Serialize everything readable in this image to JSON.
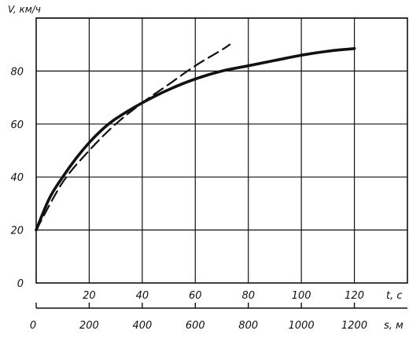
{
  "chart_data": {
    "type": "line",
    "ylabel": "V, км/ч",
    "xlabel_time": "t, c",
    "xlabel_distance": "s, м",
    "yticks": [
      0,
      20,
      40,
      60,
      80
    ],
    "ylim": [
      0,
      100
    ],
    "xticks_time": [
      20,
      40,
      60,
      80,
      100,
      120
    ],
    "xlim_time": [
      0,
      140
    ],
    "xticks_distance": [
      0,
      200,
      400,
      600,
      800,
      1000,
      1200
    ],
    "xlim_distance": [
      0,
      1400
    ],
    "grid": true,
    "series": [
      {
        "style": "solid",
        "x_axis": "time",
        "color": "#111111",
        "points": [
          [
            0,
            20
          ],
          [
            5,
            32
          ],
          [
            10,
            40
          ],
          [
            15,
            47
          ],
          [
            20,
            53
          ],
          [
            25,
            58
          ],
          [
            30,
            62
          ],
          [
            40,
            68
          ],
          [
            50,
            73
          ],
          [
            60,
            77
          ],
          [
            70,
            80
          ],
          [
            80,
            82
          ],
          [
            90,
            84
          ],
          [
            100,
            86
          ],
          [
            110,
            87.5
          ],
          [
            120,
            88.5
          ]
        ]
      },
      {
        "style": "dashed",
        "x_axis": "distance",
        "color": "#111111",
        "points": [
          [
            0,
            20
          ],
          [
            100,
            38
          ],
          [
            200,
            50
          ],
          [
            300,
            60
          ],
          [
            400,
            68
          ],
          [
            500,
            75
          ],
          [
            600,
            82
          ],
          [
            700,
            88
          ],
          [
            730,
            90
          ]
        ]
      }
    ]
  }
}
